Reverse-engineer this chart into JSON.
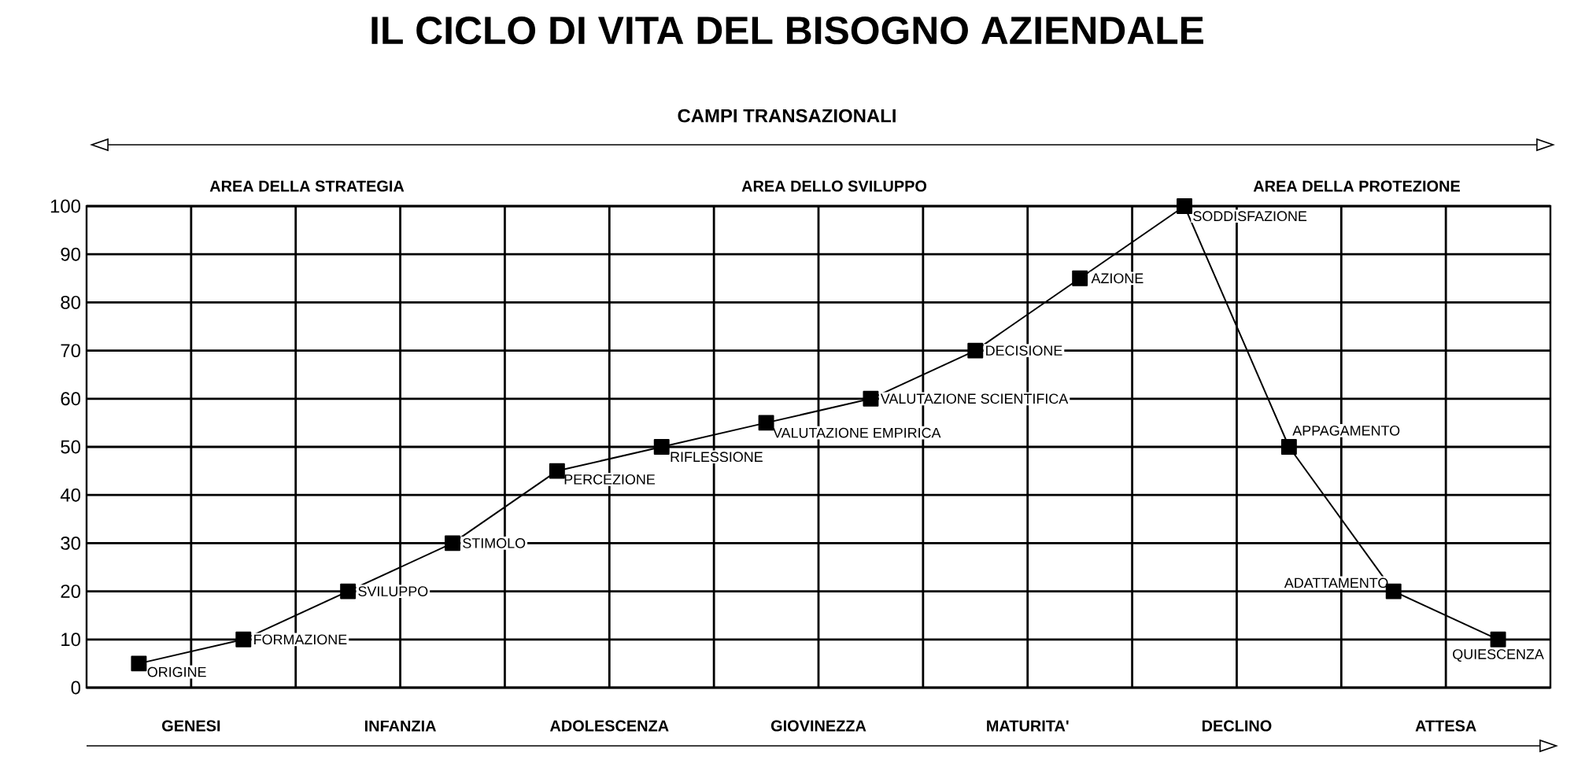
{
  "chart_data": {
    "type": "line",
    "title": "IL CICLO DI VITA DEL BISOGNO AZIENDALE",
    "categories": [
      null,
      null,
      null,
      null,
      null,
      null,
      null,
      null,
      null,
      null,
      null,
      null,
      null,
      null
    ],
    "values": [
      5,
      10,
      20,
      30,
      45,
      50,
      55,
      60,
      70,
      85,
      100,
      50,
      20,
      10
    ],
    "value_labels": [
      "ORIGINE",
      "FORMAZIONE",
      "SVILUPPO",
      "STIMOLO",
      "PERCEZIONE",
      "RIFLESSIONE",
      "VALUTAZIONE EMPIRICA",
      "VALUTAZIONE SCIENTIFICA",
      "DECISIONE",
      "AZIONE",
      "SODDISFAZIONE",
      "APPAGAMENTO",
      "ADATTAMENTO",
      "QUIESCENZA"
    ],
    "color": "#000000",
    "marker": "square",
    "line_style": "solid",
    "grid": true,
    "ylim": [
      0,
      100
    ],
    "yticks": [
      0,
      10,
      20,
      30,
      40,
      50,
      60,
      70,
      80,
      90,
      100
    ],
    "annotations": [
      "CAMPI TRANSAZIONALI",
      "AREA DELLA STRATEGIA",
      "AREA DELLO SVILUPPO",
      "AREA DELLA PROTEZIONE",
      "GENESI",
      "INFANZIA",
      "ADOLESCENZA",
      "GIOVINEZZA",
      "MATURITA'",
      "DECLINO",
      "ATTESA"
    ]
  }
}
